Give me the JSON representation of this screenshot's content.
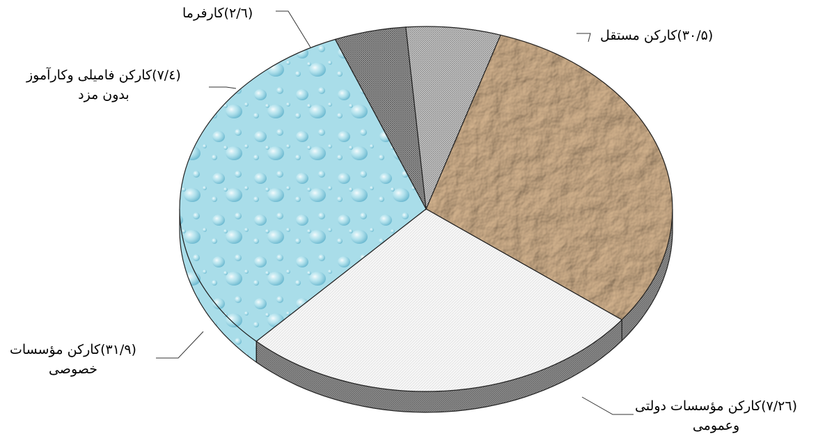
{
  "chart_data": {
    "type": "pie",
    "style": "3d-exploded-look",
    "slices": [
      {
        "label": "کارکن مستقل",
        "value": 30.5,
        "value_text": "(۳۰/۵",
        "fill": "paper-texture",
        "color": "#b59575"
      },
      {
        "label": "کارکن مؤسسات دولتی وعمومی",
        "value": 26.7,
        "value_text": "(۲۶/۷",
        "fill": "white-light-hatch",
        "color": "#f4f4f4"
      },
      {
        "label": "کارکن مؤسسات خصوصی",
        "value": 31.9,
        "value_text": "(۳۱/۹",
        "fill": "water-drops",
        "color": "#a8dce8"
      },
      {
        "label": "کارکن فامیلی وکارآموز بدون مزد",
        "value": 4.7,
        "value_text": "(٤/۷",
        "fill": "dark-cross-hatch",
        "color": "#8a8a8a"
      },
      {
        "label": "کارفرما",
        "value": 6.2,
        "value_text": "(٦/۲",
        "fill": "gray-hatch",
        "color": "#b5b5b5"
      }
    ],
    "labels": {
      "self_employed": {
        "line1": "(۳۰/۵)کارکن مستقل"
      },
      "government": {
        "line1": "(۲٦/۷)کارکن مؤسسات دولتی",
        "line2": "وعمومی"
      },
      "private": {
        "line1": "(۳۱/۹)کارکن مؤسسات",
        "line2": "خصوصی"
      },
      "family": {
        "line1": "(٤/۷)کارکن فامیلی وکارآموز",
        "line2": "بدون مزد"
      },
      "employer": {
        "line1": "(٦/۲)کارفرما"
      }
    }
  }
}
